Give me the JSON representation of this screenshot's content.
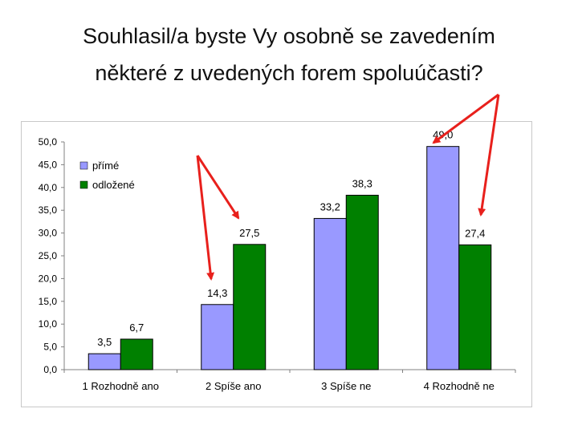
{
  "title": {
    "line1": "Souhlasil/a byste Vy osobně se zavedením",
    "line2": "některé z uvedených forem spoluúčasti?"
  },
  "chart_data": {
    "type": "bar",
    "categories": [
      "1  Rozhodně ano",
      "2  Spíše ano",
      "3  Spíše ne",
      "4  Rozhodně ne"
    ],
    "series": [
      {
        "name": "přímé",
        "values": [
          3.5,
          14.3,
          33.2,
          49.0
        ],
        "color": "#9999ff"
      },
      {
        "name": "odložené",
        "values": [
          6.7,
          27.5,
          38.3,
          27.4
        ],
        "color": "#008000"
      }
    ],
    "ylim": [
      0,
      50
    ],
    "yticks": [
      "0,0",
      "5,0",
      "10,0",
      "15,0",
      "20,0",
      "25,0",
      "30,0",
      "35,0",
      "40,0",
      "45,0",
      "50,0"
    ],
    "value_labels": [
      [
        "3,5",
        "14,3",
        "33,2",
        "49,0"
      ],
      [
        "6,7",
        "27,5",
        "38,3",
        "27,4"
      ]
    ],
    "legend_position": "top-left",
    "grid": false,
    "annotations": "red arrows pointing at 14,3 and 27,5 (Spíše ano) and at 49,0 and 27,4 (Rozhodně ne)"
  },
  "colors": {
    "arrow": "#e8201c",
    "axis": "#808080"
  }
}
